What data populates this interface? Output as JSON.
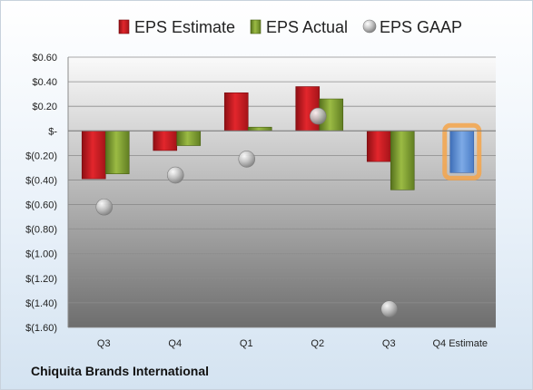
{
  "company": "Chiquita Brands International",
  "chart_data": {
    "type": "bar",
    "categories": [
      "Q3",
      "Q4",
      "Q1",
      "Q2",
      "Q3",
      "Q4 Estimate"
    ],
    "series": [
      {
        "name": "EPS Estimate",
        "color": "#c0181f",
        "values": [
          -0.39,
          -0.16,
          0.31,
          0.36,
          -0.25,
          -0.34
        ]
      },
      {
        "name": "EPS Actual",
        "color": "#7a9a2e",
        "values": [
          -0.35,
          -0.12,
          0.03,
          0.26,
          -0.48,
          null
        ]
      },
      {
        "name": "EPS GAAP",
        "color": "#a8a8a8",
        "values": [
          -0.62,
          -0.36,
          -0.23,
          0.12,
          -1.45,
          null
        ]
      }
    ],
    "estimate_color": "#5b8fd6",
    "estimate_highlight": "#f4a54a",
    "ylim": [
      -1.6,
      0.6
    ],
    "yticks": [
      0.6,
      0.4,
      0.2,
      0,
      -0.2,
      -0.4,
      -0.6,
      -0.8,
      -1.0,
      -1.2,
      -1.4,
      -1.6
    ],
    "ytick_labels": [
      "$0.60",
      "$0.40",
      "$0.20",
      "$-",
      "$(0.20)",
      "$(0.40)",
      "$(0.60)",
      "$(0.80)",
      "$(1.00)",
      "$(1.20)",
      "$(1.40)",
      "$(1.60)"
    ],
    "legend": "top",
    "grid": true
  }
}
